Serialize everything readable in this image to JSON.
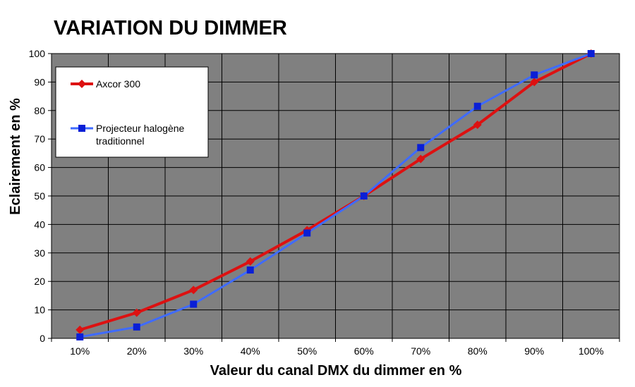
{
  "chart_data": {
    "type": "line",
    "title": "VARIATION DU DIMMER",
    "xlabel": "Valeur du canal DMX du dimmer en %",
    "ylabel": "Eclairement en %",
    "categories": [
      "10%",
      "20%",
      "30%",
      "40%",
      "50%",
      "60%",
      "70%",
      "80%",
      "90%",
      "100%"
    ],
    "ylim": [
      0,
      100
    ],
    "yticks": [
      "0",
      "10",
      "20",
      "30",
      "40",
      "50",
      "60",
      "70",
      "80",
      "90",
      "100"
    ],
    "grid": "vertical and horizontal",
    "legend_position": "top-left",
    "plot_background": "#808080",
    "series": [
      {
        "name": "Axcor 300",
        "color": "#dd1111",
        "marker": "diamond",
        "values": [
          3,
          9,
          17,
          27,
          38,
          50,
          63,
          75,
          90,
          100
        ]
      },
      {
        "name": "Projecteur halogène traditionnel",
        "name_lines": [
          "Projecteur halogène",
          "traditionnel"
        ],
        "color": "#3f6bff",
        "marker_color": "#0a1fd6",
        "marker": "square",
        "values": [
          0.5,
          4,
          12,
          24,
          37,
          50,
          67,
          81.5,
          92.5,
          100
        ]
      }
    ]
  }
}
